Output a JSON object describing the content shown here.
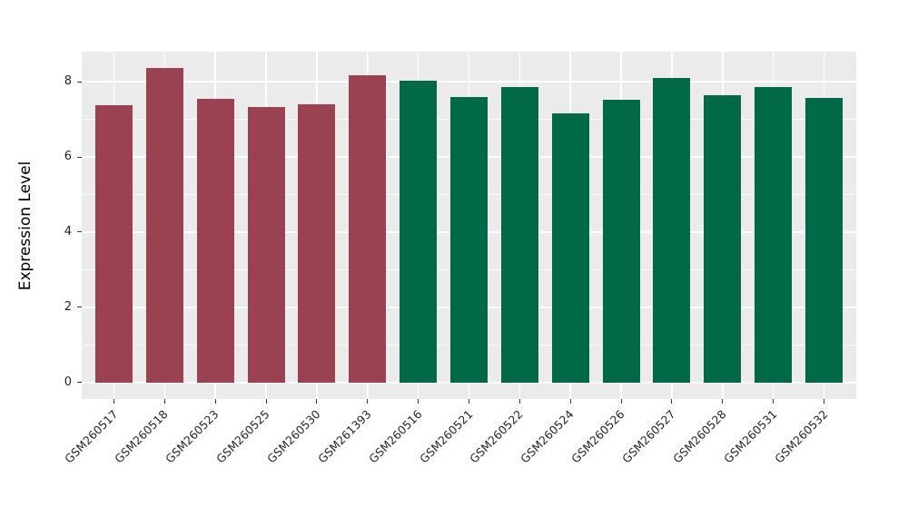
{
  "chart_data": {
    "type": "bar",
    "title": "",
    "xlabel": "",
    "ylabel": "Expression Level",
    "categories": [
      "GSM260517",
      "GSM260518",
      "GSM260523",
      "GSM260525",
      "GSM260530",
      "GSM261393",
      "GSM260516",
      "GSM260521",
      "GSM260522",
      "GSM260524",
      "GSM260526",
      "GSM260527",
      "GSM260528",
      "GSM260531",
      "GSM260532"
    ],
    "values": [
      7.38,
      8.37,
      7.55,
      7.33,
      7.41,
      8.18,
      8.04,
      7.6,
      7.86,
      7.15,
      7.52,
      8.1,
      7.64,
      7.87,
      7.57
    ],
    "bar_colors": [
      "#9b4252",
      "#9b4252",
      "#9b4252",
      "#9b4252",
      "#9b4252",
      "#9b4252",
      "#016848",
      "#016848",
      "#016848",
      "#016848",
      "#016848",
      "#016848",
      "#016848",
      "#016848",
      "#016848"
    ],
    "color_groups": {
      "maroon": "#9b4252",
      "green": "#016848"
    },
    "ylim": [
      -0.44,
      8.8
    ],
    "y_major_ticks": [
      0,
      2,
      4,
      6,
      8
    ],
    "y_minor_ticks": [
      1,
      3,
      5,
      7
    ],
    "x_tick_rotation_deg": 45,
    "grid": "major and minor horizontal + vertical at category centers, white on gray",
    "legend_position": "none",
    "panel_background": "#ebebeb",
    "grid_color": "#ffffff",
    "tick_color": "#333333",
    "tick_label_color": "#262626"
  }
}
